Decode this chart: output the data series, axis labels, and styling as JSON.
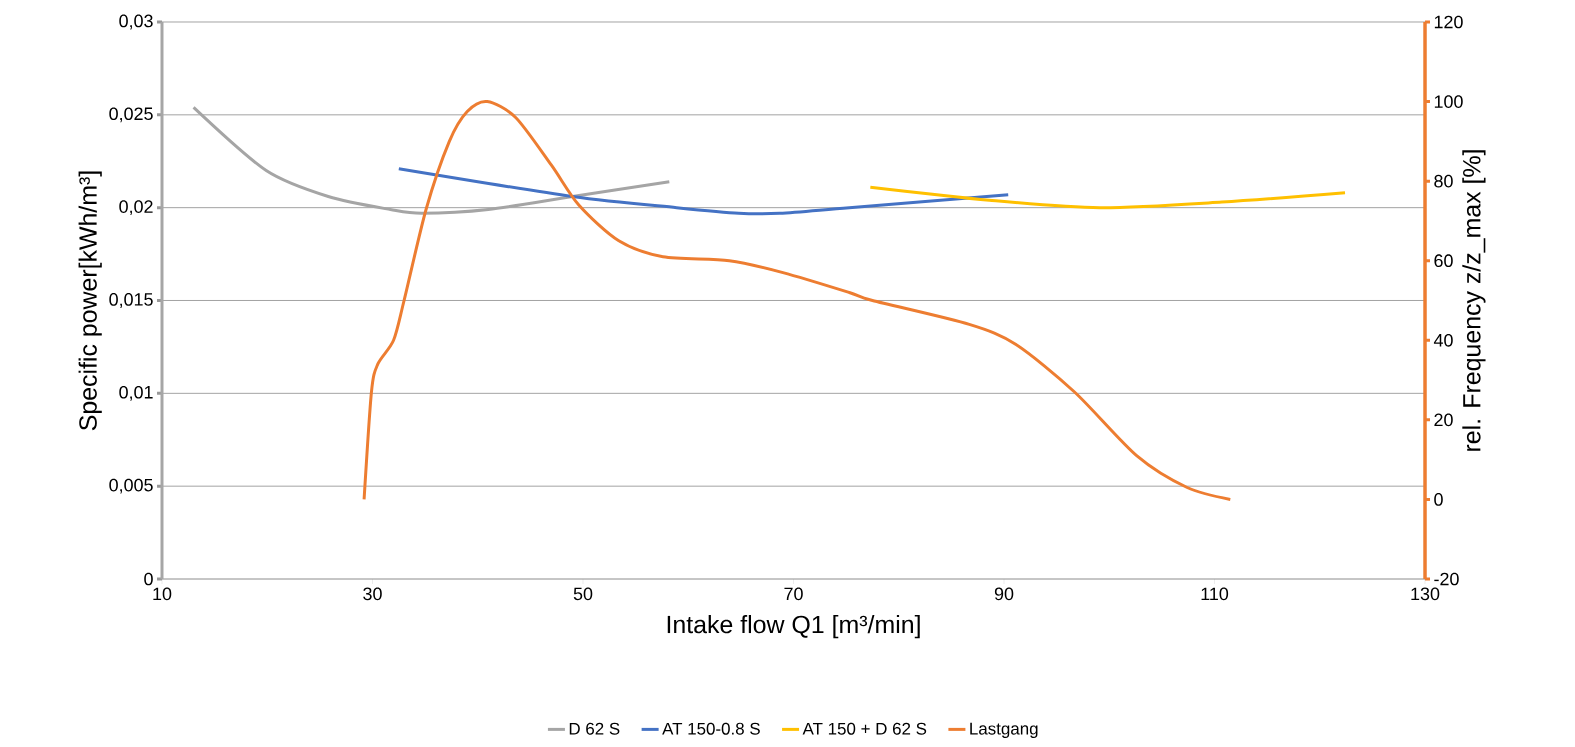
{
  "chart_data": {
    "type": "line",
    "xlabel": "Intake flow Q1 [m³/min]",
    "ylabel": "Specific power[kWh/m³]",
    "y2label": "rel. Frequency z/z_max [%]",
    "xlim": [
      10,
      130
    ],
    "xticks": [
      10,
      30,
      50,
      70,
      90,
      110,
      130
    ],
    "ylim": [
      0,
      0.03
    ],
    "yticks": [
      0,
      {
        "value": 0.005,
        "label": "0,005"
      },
      {
        "value": 0.01,
        "label": "0,01"
      },
      {
        "value": 0.015,
        "label": "0,015"
      },
      {
        "value": 0.02,
        "label": "0,02"
      },
      {
        "value": 0.025,
        "label": "0,025"
      },
      {
        "value": 0.03,
        "label": "0,03"
      }
    ],
    "y2lim": [
      -20,
      120
    ],
    "y2ticks": [
      -20,
      0,
      20,
      40,
      60,
      80,
      100,
      120
    ],
    "grid": "y",
    "legend": "bottom",
    "marker": "none",
    "line_style": "solid",
    "series": [
      {
        "name": "D 62 S",
        "color": "#a5a5a5",
        "x": [
          13,
          19.9,
          25.8,
          31.7,
          34.7,
          41,
          49,
          58.2
        ],
        "values": [
          0.0254,
          0.022,
          0.0206,
          0.0199,
          0.0197,
          0.0199,
          0.0206,
          0.0214
        ]
      },
      {
        "name": "AT 150-0.8 S",
        "color": "#4472c4",
        "x": [
          32.5,
          49,
          58.9,
          64.8,
          68.7,
          75.3,
          90.4
        ],
        "values": [
          0.0221,
          0.0206,
          0.02,
          0.0197,
          0.0197,
          0.02,
          0.0207
        ]
      },
      {
        "name": "AT 150 + D 62 S",
        "color": "#ffc000",
        "x": [
          77.3,
          88.6,
          99.1,
          110.7,
          122.4
        ],
        "values": [
          0.0211,
          0.0204,
          0.02,
          0.0203,
          0.0208
        ]
      },
      {
        "name": "Lastgang",
        "color": "#ed7d31",
        "axis": "y2",
        "x": [
          29.2,
          29.9,
          30.5,
          32,
          33,
          35.1,
          37.3,
          39,
          40.9,
          43.6,
          47,
          49.6,
          53.4,
          57.6,
          63.9,
          69,
          75.3,
          77.5,
          86.7,
          91.1,
          96.7,
          102.6,
          107.4,
          111.5
        ],
        "values": [
          0,
          27,
          34,
          40,
          50,
          73,
          90,
          97.5,
          100,
          96,
          84,
          74,
          65,
          61,
          60,
          57,
          52,
          50,
          44,
          39,
          27,
          11,
          3,
          0
        ]
      }
    ]
  }
}
